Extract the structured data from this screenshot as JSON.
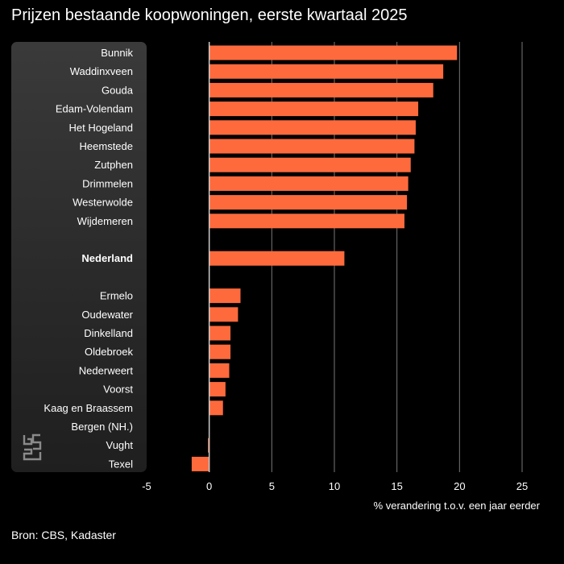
{
  "title": "Prijzen bestaande koopwoningen, eerste kwartaal 2025",
  "source": "Bron: CBS, Kadaster",
  "colors": {
    "bar": "#ff6a3d",
    "grid": "#777777",
    "zero": "#cccccc",
    "background": "#000000"
  },
  "chart_data": {
    "type": "bar",
    "orientation": "horizontal",
    "xlabel": "% verandering t.o.v. een jaar eerder",
    "ylabel": "",
    "xlim": [
      -5,
      25
    ],
    "xticks": [
      "-5",
      "0",
      "5",
      "10",
      "15",
      "20",
      "25"
    ],
    "grid": true,
    "highlight": "Nederland",
    "categories": [
      "Bunnik",
      "Waddinxveen",
      "Gouda",
      "Edam-Volendam",
      "Het Hogeland",
      "Heemstede",
      "Zutphen",
      "Drimmelen",
      "Westerwolde",
      "Wijdemeren",
      "Nederland",
      "Ermelo",
      "Oudewater",
      "Dinkelland",
      "Oldebroek",
      "Nederweert",
      "Voorst",
      "Kaag en Braassem",
      "Bergen (NH.)",
      "Vught",
      "Texel"
    ],
    "values": [
      19.8,
      18.7,
      17.9,
      16.7,
      16.5,
      16.4,
      16.1,
      15.9,
      15.8,
      15.6,
      10.8,
      2.5,
      2.3,
      1.7,
      1.7,
      1.6,
      1.3,
      1.1,
      0.0,
      -0.1,
      -1.4
    ]
  }
}
